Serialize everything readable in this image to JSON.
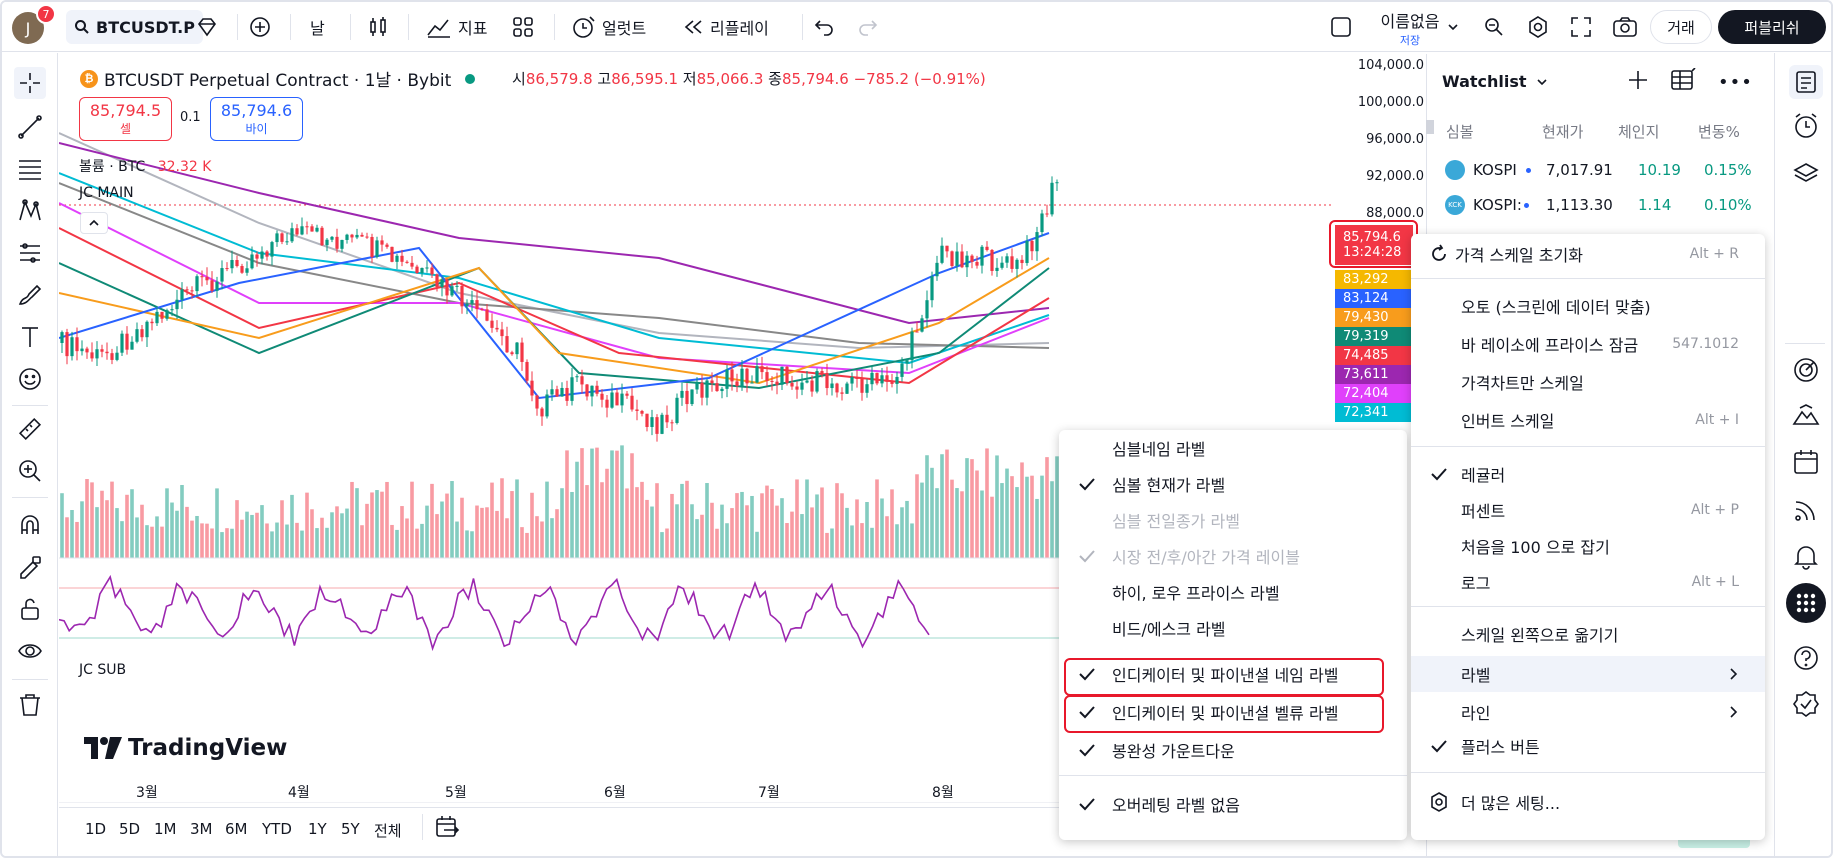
{
  "topbar": {
    "avatar_letter": "J",
    "notification_count": "7",
    "symbol": "BTCUSDT.P",
    "interval": "날",
    "indicators_label": "지표",
    "alert_label": "얼럿트",
    "replay_label": "리플레이",
    "layout_name": "이름없음",
    "layout_status": "저장",
    "trade_label": "거래",
    "publish_label": "퍼블리쉬"
  },
  "legend": {
    "title": "BTCUSDT Perpetual Contract · 1날 · Bybit",
    "o_label": "시",
    "o_value": "86,579.8",
    "h_label": "고",
    "h_value": "86,595.1",
    "l_label": "저",
    "l_value": "85,066.3",
    "c_label": "종",
    "c_value": "85,794.6",
    "change": "−785.2 (−0.91%)",
    "sell_price": "85,794.5",
    "sell_label": "셀",
    "spread": "0.1",
    "buy_price": "85,794.6",
    "buy_label": "바이",
    "volume_label": "볼륨 · BTC",
    "volume_value": "32.32 K",
    "main_indicator": "JC MAIN",
    "sub_indicator": "JC SUB",
    "watermark": "TradingView"
  },
  "price_axis": {
    "ticks": [
      "104,000.0",
      "100,000.0",
      "96,000.0",
      "92,000.0",
      "88,000.0"
    ],
    "current_price": "85,794.6",
    "countdown": "13:24:28",
    "labels": [
      {
        "value": "83,292",
        "color": "#f5b800"
      },
      {
        "value": "83,124",
        "color": "#2962ff"
      },
      {
        "value": "79,430",
        "color": "#f89c1c"
      },
      {
        "value": "79,319",
        "color": "#0f8a76"
      },
      {
        "value": "74,485",
        "color": "#f23645"
      },
      {
        "value": "73,611",
        "color": "#9c27b0"
      },
      {
        "value": "72,404",
        "color": "#e040fb"
      },
      {
        "value": "72,341",
        "color": "#00bcd4"
      }
    ]
  },
  "time_axis": [
    "3월",
    "4월",
    "5월",
    "6월",
    "7월",
    "8월"
  ],
  "ranges": [
    "1D",
    "5D",
    "1M",
    "3M",
    "6M",
    "YTD",
    "1Y",
    "5Y",
    "전체"
  ],
  "watchlist": {
    "title": "Watchlist",
    "headers": [
      "심볼",
      "현재가",
      "체인지",
      "변동%"
    ],
    "rows": [
      {
        "symbol": "KOSPI",
        "price": "7,017.91",
        "change": "10.19",
        "pct": "0.15%"
      },
      {
        "symbol": "KOSPI:",
        "price": "1,113.30",
        "change": "1.14",
        "pct": "0.10%"
      }
    ]
  },
  "scale_menu": {
    "reset": "가격 스케일 초기화",
    "reset_shortcut": "Alt + R",
    "auto": "오토 (스크린에 데이터 맞춤)",
    "lock_ratio": "바 레이소에 프라이스 잠금",
    "lock_ratio_value": "547.1012",
    "chart_only": "가격차트만 스케일",
    "invert": "인버트 스케일",
    "invert_shortcut": "Alt + I",
    "regular": "레귤러",
    "percent": "퍼센트",
    "percent_shortcut": "Alt + P",
    "indexed": "처음을 100 으로 잡기",
    "log": "로그",
    "log_shortcut": "Alt + L",
    "move_left": "스케일 왼쪽으로 옮기기",
    "labels": "라벨",
    "lines": "라인",
    "plus_button": "플러스 버튼",
    "more_settings": "더 많은 세팅..."
  },
  "labels_menu": {
    "symbol_name": "심블네임 라벨",
    "symbol_last": "심볼 현재가 라벨",
    "symbol_prev_close": "심블 전일종가 라벨",
    "extended_hours": "시장 전/후/아간 가격 레이블",
    "high_low": "하이, 로우 프라이스 라벨",
    "bid_ask": "비드/에스크 라벨",
    "indicator_name": "인디케이터 및 파이낸셜 네임 라벨",
    "indicator_value": "인디케이터 및 파이낸셜 벨류 라벨",
    "countdown": "봉완성 가운트다운",
    "no_overlap": "오버레팅 라벨 없음"
  }
}
